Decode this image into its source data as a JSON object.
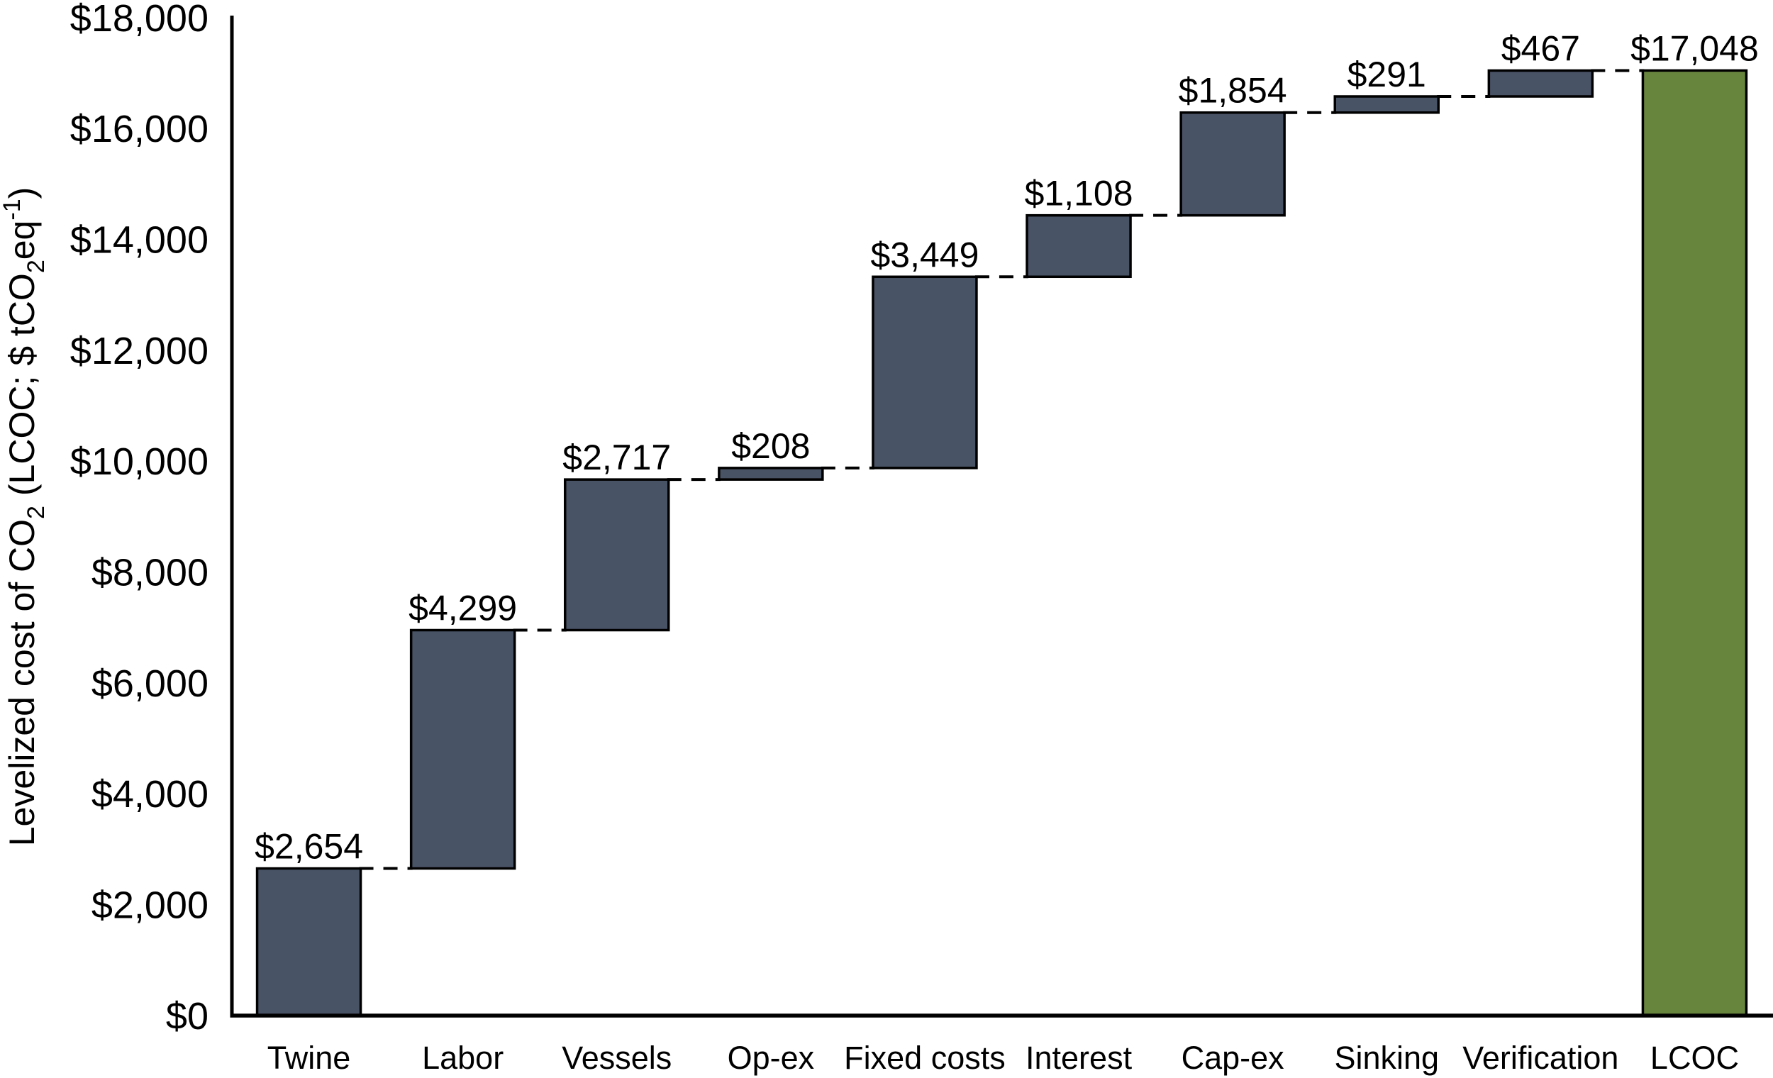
{
  "chart_data": {
    "type": "bar",
    "subtype": "waterfall",
    "title": "",
    "ylabel_plain": "Levelized cost of CO2 (LCOC; $ tCO2eq-1)",
    "ylabel_parts": [
      {
        "text": "Levelized cost of CO",
        "script": "normal"
      },
      {
        "text": "2",
        "script": "sub"
      },
      {
        "text": " (LCOC; $ tCO",
        "script": "normal"
      },
      {
        "text": "2",
        "script": "sub"
      },
      {
        "text": "eq",
        "script": "normal"
      },
      {
        "text": "-1",
        "script": "sup"
      },
      {
        "text": ")",
        "script": "normal"
      }
    ],
    "xlabel": "",
    "ylim": [
      0,
      18000
    ],
    "grid": false,
    "legend": false,
    "connector_style": "dashed",
    "yticks": [
      {
        "value": 0,
        "label": "$0"
      },
      {
        "value": 2000,
        "label": "$2,000"
      },
      {
        "value": 4000,
        "label": "$4,000"
      },
      {
        "value": 6000,
        "label": "$6,000"
      },
      {
        "value": 8000,
        "label": "$8,000"
      },
      {
        "value": 10000,
        "label": "$10,000"
      },
      {
        "value": 12000,
        "label": "$12,000"
      },
      {
        "value": 14000,
        "label": "$14,000"
      },
      {
        "value": 16000,
        "label": "$16,000"
      },
      {
        "value": 18000,
        "label": "$18,000"
      }
    ],
    "categories": [
      "Twine",
      "Labor",
      "Vessels",
      "Op-ex",
      "Fixed costs",
      "Interest",
      "Cap-ex",
      "Sinking",
      "Verification",
      "LCOC"
    ],
    "bars": [
      {
        "category": "Twine",
        "label": "$2,654",
        "value": 2654,
        "start": 0,
        "end": 2654,
        "kind": "step"
      },
      {
        "category": "Labor",
        "label": "$4,299",
        "value": 4299,
        "start": 2654,
        "end": 6953,
        "kind": "step"
      },
      {
        "category": "Vessels",
        "label": "$2,717",
        "value": 2717,
        "start": 6953,
        "end": 9670,
        "kind": "step"
      },
      {
        "category": "Op-ex",
        "label": "$208",
        "value": 208,
        "start": 9670,
        "end": 9878,
        "kind": "step"
      },
      {
        "category": "Fixed costs",
        "label": "$3,449",
        "value": 3449,
        "start": 9878,
        "end": 13327,
        "kind": "step"
      },
      {
        "category": "Interest",
        "label": "$1,108",
        "value": 1108,
        "start": 13327,
        "end": 14435,
        "kind": "step"
      },
      {
        "category": "Cap-ex",
        "label": "$1,854",
        "value": 1854,
        "start": 14435,
        "end": 16289,
        "kind": "step"
      },
      {
        "category": "Sinking",
        "label": "$291",
        "value": 291,
        "start": 16289,
        "end": 16580,
        "kind": "step"
      },
      {
        "category": "Verification",
        "label": "$467",
        "value": 467,
        "start": 16580,
        "end": 17047,
        "kind": "step"
      },
      {
        "category": "LCOC",
        "label": "$17,048",
        "value": 17048,
        "start": 0,
        "end": 17048,
        "kind": "total"
      }
    ],
    "colors": {
      "step_fill": "#495366",
      "total_fill": "#68853E",
      "bar_outline": "#000000",
      "connector": "#000000",
      "axis": "#000000",
      "text": "#000000",
      "background": "#FFFFFF"
    }
  }
}
